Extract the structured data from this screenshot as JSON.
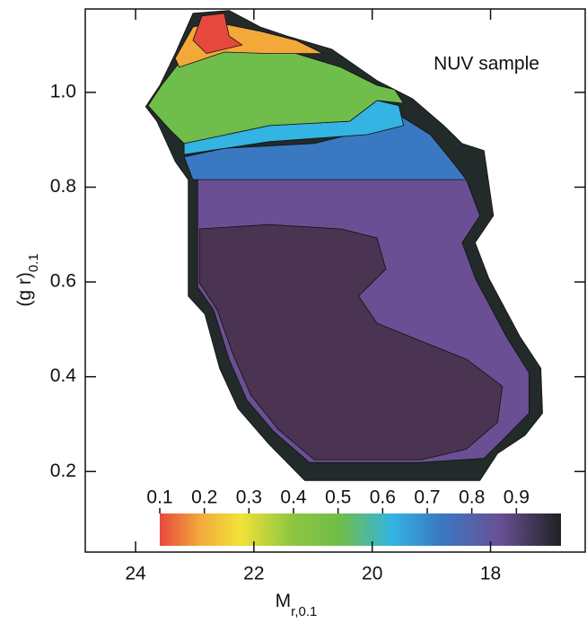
{
  "chart_data": {
    "type": "contour",
    "annotation": "NUV sample",
    "xlabel": {
      "text": "M",
      "sub": "r,0.1"
    },
    "ylabel": {
      "text": "(g   r)",
      "sub": "0.1"
    },
    "xlim": [
      24.85,
      16.4
    ],
    "ylim": [
      0.03,
      1.176
    ],
    "xticks": [
      24,
      22,
      20,
      18
    ],
    "yticks": [
      0.2,
      0.4,
      0.6,
      0.8,
      {
        "value": 1,
        "label": "1.0"
      }
    ],
    "colorbar": {
      "lim": [
        0.1,
        1.0
      ],
      "ticks": [
        0.1,
        0.2,
        0.3,
        0.4,
        0.5,
        0.6,
        0.7,
        0.8,
        0.9
      ]
    },
    "regions": [
      {
        "color": "#222a2a",
        "x": [
          23.83,
          23.59,
          23.33,
          23.03,
          22.42,
          21.89,
          21.44,
          20.68,
          19.92,
          19.32,
          18.79,
          18.48,
          18.11,
          17.95,
          18.26,
          18.03,
          17.5,
          17.15,
          17.12,
          17.42,
          17.88,
          18.18,
          19.17,
          20.23,
          21.14,
          21.74,
          22.27,
          22.58,
          22.83,
          23.11,
          23.11,
          23.33,
          23.64
        ],
        "y": [
          0.97,
          1.015,
          1.082,
          1.167,
          1.173,
          1.138,
          1.119,
          1.091,
          1.025,
          0.987,
          0.93,
          0.892,
          0.877,
          0.74,
          0.683,
          0.608,
          0.484,
          0.418,
          0.323,
          0.276,
          0.238,
          0.181,
          0.181,
          0.181,
          0.181,
          0.257,
          0.333,
          0.418,
          0.532,
          0.57,
          0.816,
          0.854,
          0.939
        ]
      },
      {
        "color": "#6a4f94",
        "x": [
          22.95,
          21.74,
          20.23,
          18.71,
          18.41,
          18.18,
          18.48,
          18.26,
          17.73,
          17.35,
          17.35,
          17.8,
          18.11,
          19.17,
          21.06,
          21.67,
          22.12,
          22.42,
          22.68,
          22.95
        ],
        "y": [
          0.845,
          0.854,
          0.845,
          0.835,
          0.816,
          0.74,
          0.683,
          0.608,
          0.484,
          0.408,
          0.323,
          0.266,
          0.228,
          0.219,
          0.219,
          0.285,
          0.351,
          0.437,
          0.541,
          0.589
        ]
      },
      {
        "color": "#4a3452",
        "x": [
          22.92,
          21.74,
          20.53,
          19.92,
          19.77,
          20.23,
          19.92,
          19.17,
          18.41,
          17.8,
          17.88,
          18.41,
          19.17,
          20.98,
          21.59,
          22.05,
          22.35,
          22.62,
          22.92
        ],
        "y": [
          0.712,
          0.721,
          0.712,
          0.693,
          0.627,
          0.57,
          0.513,
          0.475,
          0.437,
          0.38,
          0.304,
          0.247,
          0.225,
          0.225,
          0.289,
          0.361,
          0.446,
          0.541,
          0.598
        ]
      },
      {
        "color": "#3a78c2",
        "x": [
          23.18,
          22.5,
          20.98,
          20.08,
          19.62,
          19.02,
          18.71,
          18.41,
          23.03
        ],
        "y": [
          0.864,
          0.882,
          0.892,
          0.92,
          0.958,
          0.911,
          0.864,
          0.816,
          0.816
        ]
      },
      {
        "color": "#33b4e2",
        "x": [
          23.18,
          21.74,
          20.38,
          19.92,
          19.55,
          19.47,
          20.08,
          21.74,
          23.18
        ],
        "y": [
          0.892,
          0.93,
          0.939,
          0.983,
          0.972,
          0.93,
          0.911,
          0.896,
          0.869
        ]
      },
      {
        "color": "#6fbd4a",
        "x": [
          23.79,
          23.56,
          23.26,
          22.35,
          21.29,
          20.53,
          19.92,
          19.62,
          19.47,
          19.92,
          20.38,
          21.74,
          23.18,
          23.41
        ],
        "y": [
          0.972,
          1.015,
          1.063,
          1.091,
          1.082,
          1.053,
          1.015,
          1.006,
          0.977,
          0.983,
          0.939,
          0.93,
          0.892,
          0.92
        ]
      },
      {
        "color": "#f2a93a",
        "x": [
          23.33,
          23.03,
          22.65,
          21.89,
          21.29,
          20.83,
          21.74,
          22.5,
          23.26
        ],
        "y": [
          1.072,
          1.138,
          1.148,
          1.129,
          1.11,
          1.082,
          1.082,
          1.085,
          1.053
        ]
      },
      {
        "color": "#e6483e",
        "x": [
          23.03,
          22.88,
          22.5,
          22.42,
          22.2,
          22.8
        ],
        "y": [
          1.11,
          1.161,
          1.167,
          1.119,
          1.1,
          1.082
        ]
      }
    ]
  }
}
